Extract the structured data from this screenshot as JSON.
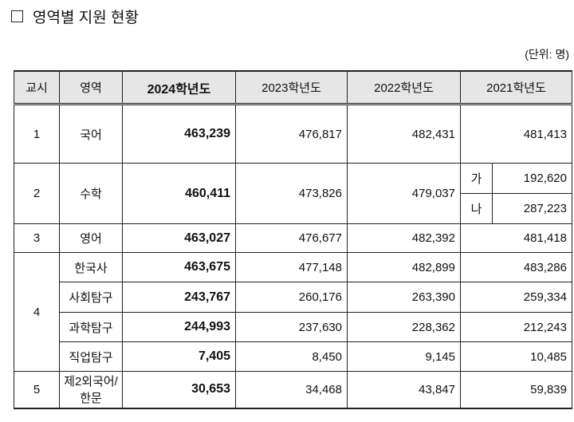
{
  "title": "영역별 지원 현황",
  "unit": "(단위: 명)",
  "table": {
    "header": [
      "교시",
      "영역",
      "2024학년도",
      "2023학년도",
      "2022학년도",
      "2021학년도"
    ],
    "rows": [
      {
        "period": "1",
        "subject": "국어",
        "values": [
          "463,239",
          "476,817",
          "482,431",
          "481,413"
        ]
      },
      {
        "period": "2",
        "subject": "수학",
        "values": [
          "460,411",
          "473,826",
          "479,037"
        ],
        "split": [
          {
            "label": "가",
            "value": "192,620"
          },
          {
            "label": "나",
            "value": "287,223"
          }
        ]
      },
      {
        "period": "3",
        "subject": "영어",
        "values": [
          "463,027",
          "476,677",
          "482,392",
          "481,418"
        ]
      },
      {
        "period": "4",
        "subjects": [
          {
            "subject": "한국사",
            "values": [
              "463,675",
              "477,148",
              "482,899",
              "483,286"
            ]
          },
          {
            "subject": "사회탐구",
            "values": [
              "243,767",
              "260,176",
              "263,390",
              "259,334"
            ]
          },
          {
            "subject": "과학탐구",
            "values": [
              "244,993",
              "237,630",
              "228,362",
              "212,243"
            ]
          },
          {
            "subject": "직업탐구",
            "values": [
              "7,405",
              "8,450",
              "9,145",
              "10,485"
            ]
          }
        ]
      },
      {
        "period": "5",
        "subject": "제2외국어/한문",
        "values": [
          "30,653",
          "34,468",
          "43,847",
          "59,839"
        ]
      }
    ]
  }
}
